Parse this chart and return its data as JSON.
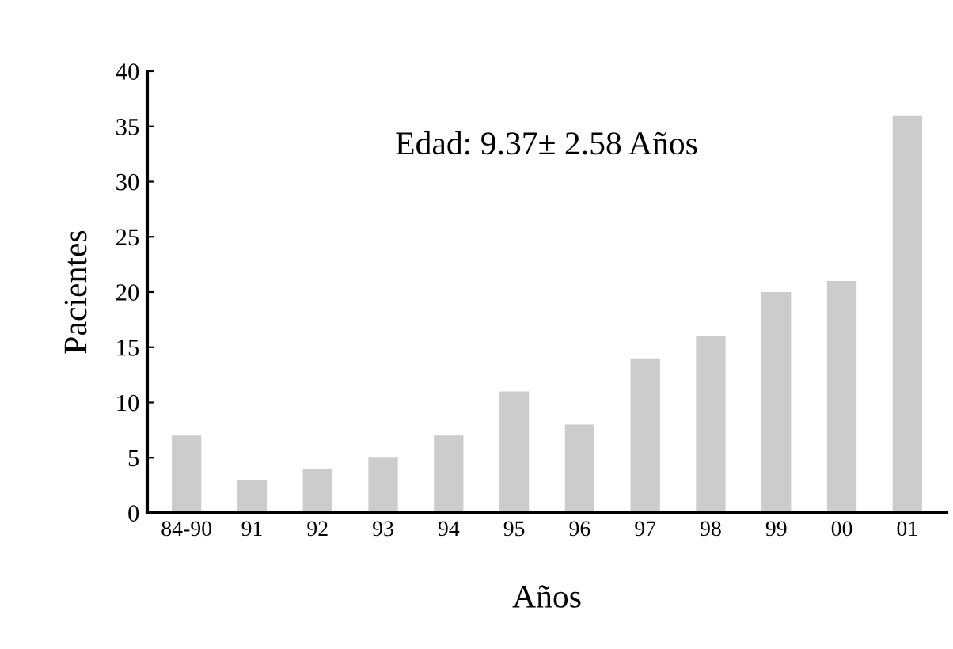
{
  "chart_data": {
    "type": "bar",
    "xlabel": "Años",
    "ylabel": "Pacientes",
    "categories": [
      "84-90",
      "91",
      "92",
      "93",
      "94",
      "95",
      "96",
      "97",
      "98",
      "99",
      "00",
      "01"
    ],
    "values": [
      7,
      3,
      4,
      5,
      7,
      11,
      8,
      14,
      16,
      20,
      21,
      36
    ],
    "color": "#cccccc",
    "ylim": [
      0,
      40
    ],
    "yticks": [
      0,
      5,
      10,
      15,
      20,
      25,
      30,
      35,
      40
    ],
    "annotations": [
      "Edad: 9.37± 2.58 Años"
    ],
    "grid": false,
    "legend": false
  }
}
